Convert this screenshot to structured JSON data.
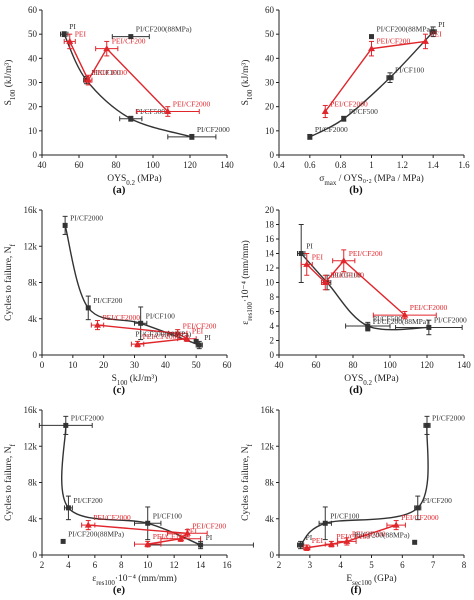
{
  "chart_data": [
    {
      "panel": "(a)",
      "type": "scatter",
      "xlabel": "OYS",
      "xlabel_sub": "0.2",
      "xlabel_unit": " (MPa)",
      "ylabel": "S",
      "ylabel_sub": "100",
      "ylabel_unit": " (kJ/m³)",
      "xlim": [
        40,
        140
      ],
      "xticks": [
        40,
        60,
        80,
        100,
        120,
        140
      ],
      "ylim": [
        0,
        60
      ],
      "yticks": [
        0,
        10,
        20,
        30,
        40,
        50,
        60
      ],
      "series": [
        {
          "color": "#333333",
          "marker": "square",
          "line": "smooth",
          "points": [
            {
              "label": "PI",
              "x": 52,
              "y": 50,
              "xerr": 2,
              "yerr": 1
            },
            {
              "label": "PI/CF100",
              "x": 64,
              "y": 31,
              "xerr": 1.5,
              "yerr": 1.5
            },
            {
              "label": "PI/CF500",
              "x": 88,
              "y": 15,
              "xerr": 6,
              "yerr": 1
            },
            {
              "label": "PI/CF2000",
              "x": 121,
              "y": 7.5,
              "xerr": 13,
              "yerr": 1
            }
          ]
        },
        {
          "color": "#e0252b",
          "marker": "triangle",
          "line": "straight",
          "points": [
            {
              "label": "PEI",
              "x": 55,
              "y": 47,
              "xerr": 3,
              "yerr": 3
            },
            {
              "label": "PEI/CF100",
              "x": 65,
              "y": 31,
              "xerr": 2,
              "yerr": 2
            },
            {
              "label": "PEI/CF200",
              "x": 75,
              "y": 44,
              "xerr": 6,
              "yerr": 3
            },
            {
              "label": "PEI/CF2000",
              "x": 108,
              "y": 18,
              "xerr": 17,
              "yerr": 2
            }
          ]
        },
        {
          "color": "#333333",
          "marker": "square",
          "line": "none",
          "points": [
            {
              "label": "PI/CF200(88MPa)",
              "x": 88,
              "y": 49,
              "xerr": 10,
              "yerr": 0
            }
          ]
        }
      ]
    },
    {
      "panel": "(b)",
      "type": "scatter",
      "xlabel": "σ",
      "xlabel_sub": "max",
      "xlabel_unit": " / OYS₀.₂ (MPa / MPa)",
      "ylabel": "S",
      "ylabel_sub": "100",
      "ylabel_unit": " (kJ/m³)",
      "xlim": [
        0.4,
        1.6
      ],
      "xticks": [
        0.4,
        0.6,
        0.8,
        1.0,
        1.2,
        1.4,
        1.6
      ],
      "ylim": [
        0,
        60
      ],
      "yticks": [
        0,
        10,
        20,
        30,
        40,
        50,
        60
      ],
      "series": [
        {
          "color": "#333333",
          "marker": "square",
          "line": "smooth",
          "points": [
            {
              "label": "PI/CF2000",
              "x": 0.6,
              "y": 7.5,
              "xerr": 0,
              "yerr": 1
            },
            {
              "label": "PI/CF500",
              "x": 0.82,
              "y": 15,
              "xerr": 0,
              "yerr": 1
            },
            {
              "label": "PI/CF100",
              "x": 1.12,
              "y": 32,
              "xerr": 0.02,
              "yerr": 2
            },
            {
              "label": "PI",
              "x": 1.4,
              "y": 51,
              "xerr": 0.02,
              "yerr": 2
            }
          ]
        },
        {
          "color": "#e0252b",
          "marker": "triangle",
          "line": "straight",
          "points": [
            {
              "label": "PEI/CF2000",
              "x": 0.7,
              "y": 18,
              "xerr": 0,
              "yerr": 2.5
            },
            {
              "label": "PEI/CF200",
              "x": 1.0,
              "y": 44,
              "xerr": 0,
              "yerr": 3
            },
            {
              "label": "PEI",
              "x": 1.35,
              "y": 47,
              "xerr": 0,
              "yerr": 3
            }
          ]
        },
        {
          "color": "#333333",
          "marker": "square",
          "line": "none",
          "points": [
            {
              "label": "PI/CF200(88MPa)",
              "x": 1.0,
              "y": 49,
              "xerr": 0,
              "yerr": 0
            }
          ]
        }
      ]
    },
    {
      "panel": "(c)",
      "type": "scatter",
      "xlabel": "S",
      "xlabel_sub": "100",
      "xlabel_unit": " (kJ/m³)",
      "ylabel": "Cycles to failure, N",
      "ylabel_sub": "f",
      "ylabel_unit": "",
      "xlim": [
        0,
        60
      ],
      "xticks": [
        0,
        10,
        20,
        30,
        40,
        50,
        60
      ],
      "ylim": [
        0,
        16000
      ],
      "yticks": [
        0,
        4000,
        8000,
        12000,
        16000
      ],
      "yticklabels": [
        "0",
        "4k",
        "8k",
        "12k",
        "16k"
      ],
      "series": [
        {
          "color": "#333333",
          "marker": "square",
          "line": "smooth",
          "points": [
            {
              "label": "PI/CF2000",
              "x": 7.5,
              "y": 14300,
              "xerr": 0.5,
              "yerr": 1000
            },
            {
              "label": "PI/CF200",
              "x": 15,
              "y": 5200,
              "xerr": 0.5,
              "yerr": 1300
            },
            {
              "label": "PI/CF100",
              "x": 32,
              "y": 3500,
              "xerr": 2,
              "yerr": 1800
            },
            {
              "label": "PI",
              "x": 51,
              "y": 1100,
              "xerr": 1,
              "yerr": 400
            }
          ]
        },
        {
          "color": "#e0252b",
          "marker": "triangle",
          "line": "straight",
          "points": [
            {
              "label": "PEI/CF2000",
              "x": 18,
              "y": 3300,
              "xerr": 2,
              "yerr": 500
            },
            {
              "label": "PEI/CF200",
              "x": 44,
              "y": 2400,
              "xerr": 3,
              "yerr": 400
            },
            {
              "label": "PEI",
              "x": 47,
              "y": 1800,
              "xerr": 3,
              "yerr": 300
            },
            {
              "label": "PEI/CF100",
              "x": 31,
              "y": 1200,
              "xerr": 2,
              "yerr": 300
            }
          ]
        },
        {
          "color": "#333333",
          "marker": "square",
          "line": "none",
          "points": [
            {
              "label": "PI/CF200(88MPa)",
              "x": 50,
              "y": 1500,
              "xerr": 0,
              "yerr": 0
            }
          ]
        }
      ]
    },
    {
      "panel": "(d)",
      "type": "scatter",
      "xlabel": "OYS",
      "xlabel_sub": "0.2",
      "xlabel_unit": " (MPa)",
      "ylabel": "ε",
      "ylabel_sub": "res100",
      "ylabel_unit": "·10⁻⁴ (mm/mm)",
      "xlim": [
        40,
        140
      ],
      "xticks": [
        40,
        60,
        80,
        100,
        120,
        140
      ],
      "ylim": [
        0,
        20
      ],
      "yticks": [
        0,
        2,
        4,
        6,
        8,
        10,
        12,
        14,
        16,
        18,
        20
      ],
      "series": [
        {
          "color": "#333333",
          "marker": "square",
          "line": "smooth",
          "points": [
            {
              "label": "PI",
              "x": 52,
              "y": 14,
              "xerr": 2,
              "yerr": 4
            },
            {
              "label": "PI/CF100",
              "x": 66,
              "y": 10,
              "xerr": 2,
              "yerr": 1
            },
            {
              "label": "PI/CF500",
              "x": 88,
              "y": 4,
              "xerr": 12,
              "yerr": 0.5
            },
            {
              "label": "PI/CF2000",
              "x": 121,
              "y": 3.8,
              "xerr": 18,
              "yerr": 1
            }
          ]
        },
        {
          "color": "#e0252b",
          "marker": "triangle",
          "line": "straight",
          "points": [
            {
              "label": "PEI",
              "x": 55,
              "y": 12.5,
              "xerr": 3,
              "yerr": 1.5
            },
            {
              "label": "PEI/CF100",
              "x": 65,
              "y": 10,
              "xerr": 2,
              "yerr": 1
            },
            {
              "label": "PEI/CF200",
              "x": 75,
              "y": 13,
              "xerr": 6,
              "yerr": 1.5
            },
            {
              "label": "PEI/CF2000",
              "x": 108,
              "y": 5.5,
              "xerr": 17,
              "yerr": 0.5
            }
          ]
        },
        {
          "color": "#333333",
          "marker": "square",
          "line": "none",
          "points": [
            {
              "label": "PI/CF200(88MPa)",
              "x": 88,
              "y": 3.6,
              "xerr": 0,
              "yerr": 0
            }
          ]
        }
      ]
    },
    {
      "panel": "(e)",
      "type": "scatter",
      "xlabel": "ε",
      "xlabel_sub": "res100",
      "xlabel_unit": "·10⁻⁴ (mm/mm)",
      "ylabel": "Cycles to failure, N",
      "ylabel_sub": "f",
      "ylabel_unit": "",
      "xlim": [
        2,
        16
      ],
      "xticks": [
        2,
        4,
        6,
        8,
        10,
        12,
        14,
        16
      ],
      "ylim": [
        0,
        16000
      ],
      "yticks": [
        0,
        4000,
        8000,
        12000,
        16000
      ],
      "yticklabels": [
        "0",
        "4k",
        "8k",
        "12k",
        "16k"
      ],
      "series": [
        {
          "color": "#333333",
          "marker": "square",
          "line": "smooth",
          "points": [
            {
              "label": "PI/CF2000",
              "x": 3.8,
              "y": 14300,
              "xerr": 2,
              "yerr": 1000
            },
            {
              "label": "PI/CF200",
              "x": 4,
              "y": 5200,
              "xerr": 0.3,
              "yerr": 1300
            },
            {
              "label": "PI/CF100",
              "x": 10,
              "y": 3500,
              "xerr": 1,
              "yerr": 1800
            },
            {
              "label": "PI",
              "x": 14,
              "y": 1100,
              "xerr": 4,
              "yerr": 400
            }
          ]
        },
        {
          "color": "#e0252b",
          "marker": "triangle",
          "line": "straight",
          "points": [
            {
              "label": "PEI/CF2000",
              "x": 5.5,
              "y": 3300,
              "xerr": 0.5,
              "yerr": 500
            },
            {
              "label": "PEI/CF200",
              "x": 13,
              "y": 2400,
              "xerr": 1.5,
              "yerr": 400
            },
            {
              "label": "PEI",
              "x": 12.5,
              "y": 1800,
              "xerr": 1.5,
              "yerr": 300
            },
            {
              "label": "PEI/CF100",
              "x": 10,
              "y": 1200,
              "xerr": 1,
              "yerr": 300
            }
          ]
        },
        {
          "color": "#333333",
          "marker": "square",
          "line": "none",
          "points": [
            {
              "label": "PI/CF200(88MPa)",
              "x": 3.6,
              "y": 1500,
              "xerr": 0,
              "yerr": 0
            }
          ]
        }
      ]
    },
    {
      "panel": "(f)",
      "type": "scatter",
      "xlabel": "E",
      "xlabel_sub": "sec100",
      "xlabel_unit": " (GPa)",
      "ylabel": "Cycles to failure, N",
      "ylabel_sub": "f",
      "ylabel_unit": "",
      "xlim": [
        2,
        8
      ],
      "xticks": [
        2,
        3,
        4,
        5,
        6,
        7,
        8
      ],
      "ylim": [
        0,
        16000
      ],
      "yticks": [
        0,
        4000,
        8000,
        12000,
        16000
      ],
      "yticklabels": [
        "0",
        "4k",
        "8k",
        "12k",
        "16k"
      ],
      "series": [
        {
          "color": "#333333",
          "marker": "square",
          "line": "smooth",
          "points": [
            {
              "label": "PI",
              "x": 2.7,
              "y": 1100,
              "xerr": 0.1,
              "yerr": 400
            },
            {
              "label": "PI/CF100",
              "x": 3.5,
              "y": 3500,
              "xerr": 0.2,
              "yerr": 1800
            },
            {
              "label": "PI/CF200",
              "x": 6.5,
              "y": 5200,
              "xerr": 0.1,
              "yerr": 1300
            },
            {
              "label": "PI/CF2000",
              "x": 6.8,
              "y": 14300,
              "xerr": 0.1,
              "yerr": 1000
            }
          ]
        },
        {
          "color": "#e0252b",
          "marker": "triangle",
          "line": "straight",
          "points": [
            {
              "label": "PEI",
              "x": 2.9,
              "y": 800,
              "xerr": 0.1,
              "yerr": 300
            },
            {
              "label": "PEI/CF100",
              "x": 3.7,
              "y": 1200,
              "xerr": 0.2,
              "yerr": 300
            },
            {
              "label": "PEI/CF200",
              "x": 4.2,
              "y": 1500,
              "xerr": 0.3,
              "yerr": 400
            },
            {
              "label": "PEI/CF2000",
              "x": 5.8,
              "y": 3300,
              "xerr": 0.3,
              "yerr": 500
            }
          ]
        },
        {
          "color": "#333333",
          "marker": "square",
          "line": "none",
          "points": [
            {
              "label": "PI/CF200(88MPa)",
              "x": 6.4,
              "y": 1400,
              "xerr": 0,
              "yerr": 0
            }
          ]
        }
      ]
    }
  ]
}
